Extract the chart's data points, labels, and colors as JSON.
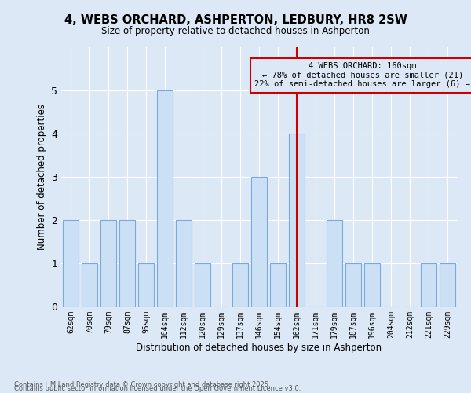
{
  "title": "4, WEBS ORCHARD, ASHPERTON, LEDBURY, HR8 2SW",
  "subtitle": "Size of property relative to detached houses in Ashperton",
  "xlabel": "Distribution of detached houses by size in Ashperton",
  "ylabel": "Number of detached properties",
  "categories": [
    "62sqm",
    "70sqm",
    "79sqm",
    "87sqm",
    "95sqm",
    "104sqm",
    "112sqm",
    "120sqm",
    "129sqm",
    "137sqm",
    "146sqm",
    "154sqm",
    "162sqm",
    "171sqm",
    "179sqm",
    "187sqm",
    "196sqm",
    "204sqm",
    "212sqm",
    "221sqm",
    "229sqm"
  ],
  "values": [
    2,
    1,
    2,
    2,
    1,
    5,
    2,
    1,
    0,
    1,
    3,
    1,
    4,
    0,
    2,
    1,
    1,
    0,
    0,
    1,
    1
  ],
  "bar_color": "#cce0f5",
  "bar_edge_color": "#7aaadd",
  "reference_line_x": 12,
  "reference_line_color": "#cc0000",
  "annotation_title": "4 WEBS ORCHARD: 160sqm",
  "annotation_line1": "← 78% of detached houses are smaller (21)",
  "annotation_line2": "22% of semi-detached houses are larger (6) →",
  "annotation_box_edgecolor": "#cc0000",
  "ylim": [
    0,
    6
  ],
  "yticks": [
    0,
    1,
    2,
    3,
    4,
    5,
    6
  ],
  "background_color": "#dce8f5",
  "grid_color": "#ffffff",
  "footnote1": "Contains HM Land Registry data © Crown copyright and database right 2025.",
  "footnote2": "Contains public sector information licensed under the Open Government Licence v3.0."
}
